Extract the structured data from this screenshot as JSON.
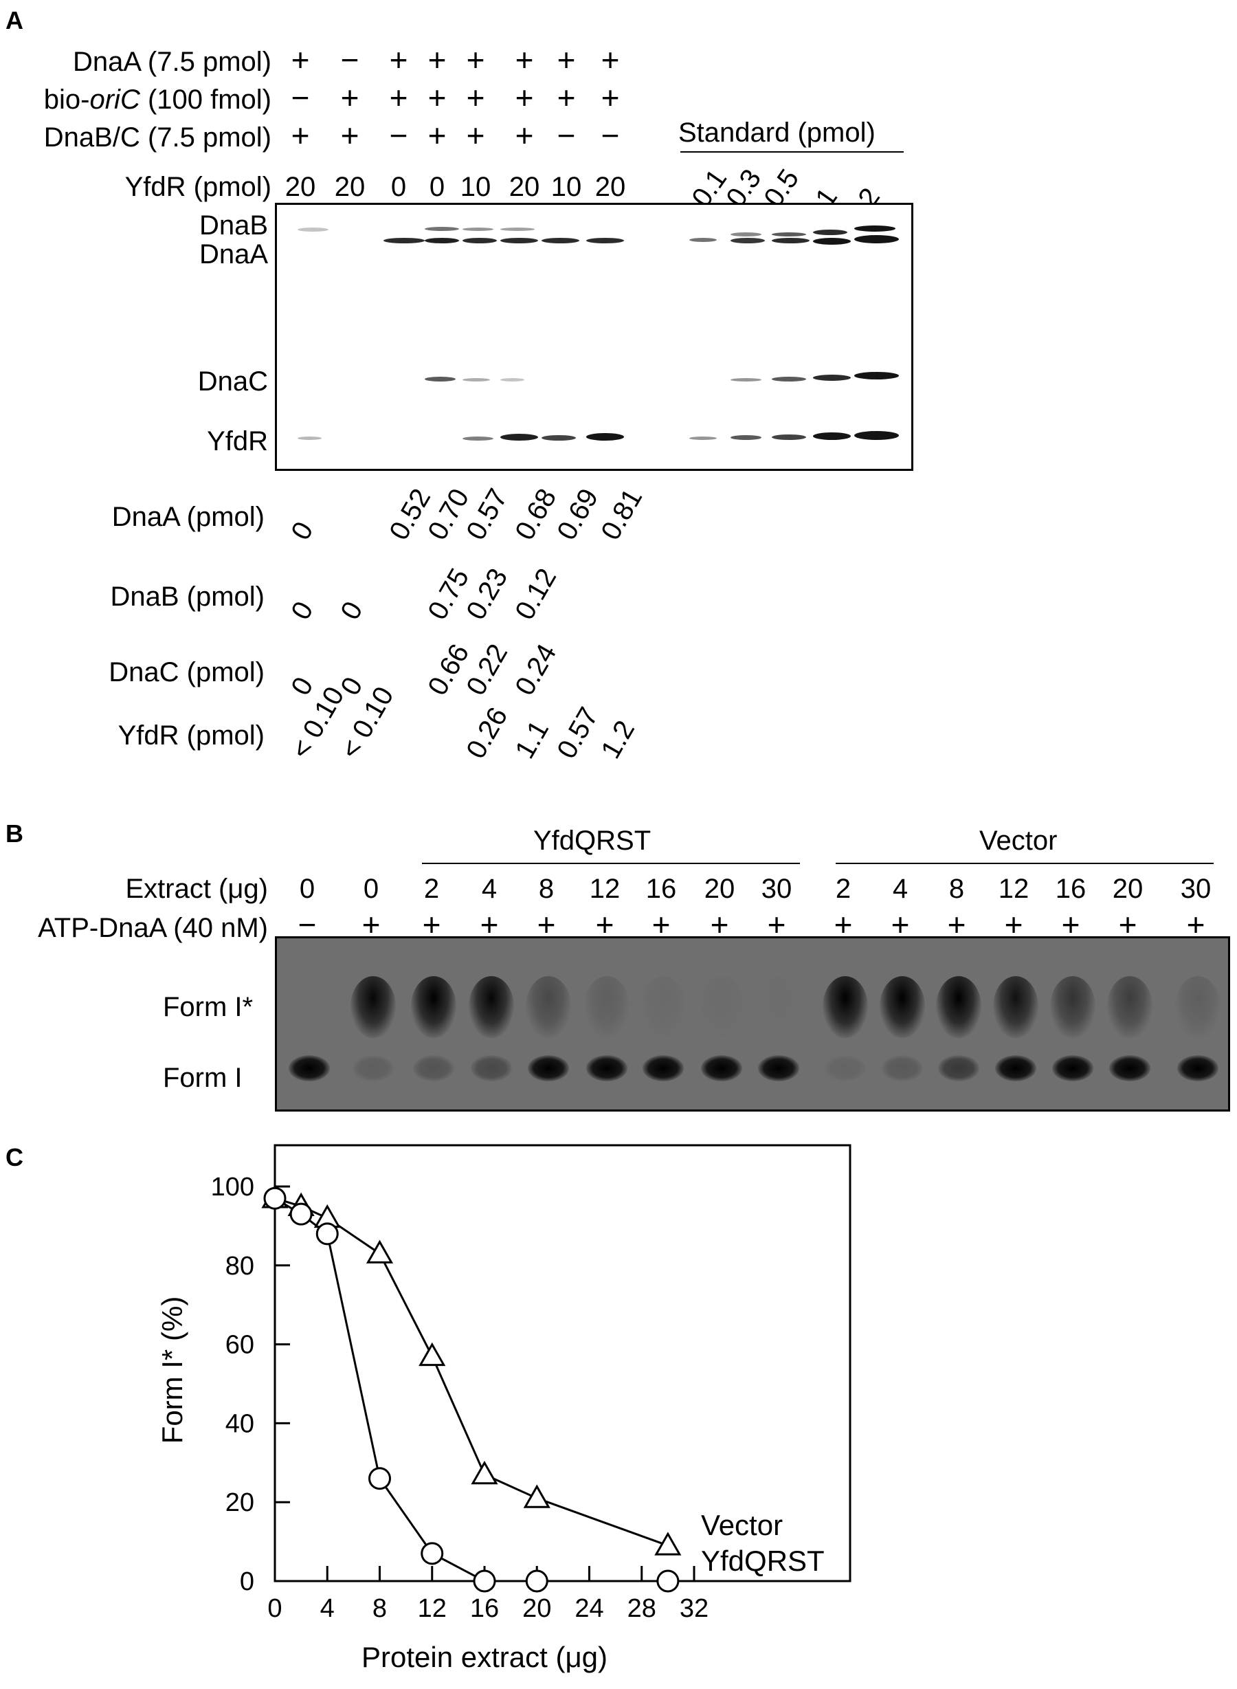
{
  "panelA": {
    "letter": "A",
    "rows": [
      {
        "label_pre": "DnaA (7.5 pmol)",
        "label_ital": "",
        "label_post": "",
        "signs": [
          "+",
          "−",
          "+",
          "+",
          "+",
          "+",
          "+",
          "+"
        ]
      },
      {
        "label_pre": "bio-",
        "label_ital": "oriC",
        "label_post": " (100 fmol)",
        "signs": [
          "−",
          "+",
          "+",
          "+",
          "+",
          "+",
          "+",
          "+"
        ]
      },
      {
        "label_pre": "DnaB/C (7.5 pmol)",
        "label_ital": "",
        "label_post": "",
        "signs": [
          "+",
          "+",
          "−",
          "+",
          "+",
          "+",
          "−",
          "−"
        ]
      }
    ],
    "yfdr_row_label": "YfdR (pmol)",
    "yfdr_values": [
      "20",
      "20",
      "0",
      "0",
      "10",
      "20",
      "10",
      "20"
    ],
    "standard_label": "Standard (pmol)",
    "standard_values": [
      "0.1",
      "0.3",
      "0.5",
      "1",
      "2"
    ],
    "band_labels": [
      "DnaB",
      "DnaA",
      "DnaC",
      "YfdR"
    ],
    "quant": [
      {
        "label": "DnaA (pmol)",
        "values": [
          "0",
          "",
          "0.52",
          "0.70",
          "0.57",
          "0.68",
          "0.69",
          "0.81"
        ]
      },
      {
        "label": "DnaB (pmol)",
        "values": [
          "0",
          "0",
          "",
          "0.75",
          "0.23",
          "0.12",
          "",
          ""
        ]
      },
      {
        "label": "DnaC (pmol)",
        "values": [
          "0",
          "0",
          "",
          "0.66",
          "0.22",
          "0.24",
          "",
          ""
        ]
      },
      {
        "label": "YfdR (pmol)",
        "values": [
          "< 0.10",
          "< 0.10",
          "",
          "",
          "0.26",
          "1.1",
          "0.57",
          "1.2"
        ]
      }
    ]
  },
  "panelB": {
    "letter": "B",
    "group1": "YfdQRST",
    "group2": "Vector",
    "extract_label_pre": "Extract (",
    "extract_label_unit": "μg",
    "extract_label_post": ")",
    "extract_values": [
      "0",
      "0",
      "2",
      "4",
      "8",
      "12",
      "16",
      "20",
      "30",
      "2",
      "4",
      "8",
      "12",
      "16",
      "20",
      "30"
    ],
    "atp_label": "ATP-DnaA (40 nM)",
    "atp_signs": [
      "−",
      "+",
      "+",
      "+",
      "+",
      "+",
      "+",
      "+",
      "+",
      "+",
      "+",
      "+",
      "+",
      "+",
      "+",
      "+"
    ],
    "form_labels": [
      "Form I*",
      "Form I"
    ],
    "formIstar_intensity": [
      0,
      0.95,
      1,
      0.95,
      0.35,
      0.15,
      0.05,
      0.03,
      0.02,
      1,
      1,
      1,
      0.85,
      0.55,
      0.45,
      0.15
    ],
    "formI_intensity": [
      1,
      0.15,
      0.25,
      0.35,
      1,
      1,
      1,
      1,
      1,
      0.1,
      0.2,
      0.5,
      1,
      1,
      1,
      1
    ]
  },
  "panelC": {
    "letter": "C",
    "chart_data": {
      "type": "line",
      "xlabel": "Protein extract (μg)",
      "ylabel": "Form I* (%)",
      "xlim": [
        0,
        32
      ],
      "ylim": [
        0,
        100
      ],
      "xticks": [
        0,
        4,
        8,
        12,
        16,
        20,
        24,
        28,
        32
      ],
      "yticks": [
        0,
        20,
        40,
        60,
        80,
        100
      ],
      "series": [
        {
          "name": "Vector",
          "marker": "triangle",
          "x": [
            0,
            2,
            4,
            8,
            12,
            16,
            20,
            30
          ],
          "y": [
            97,
            95,
            92,
            83,
            57,
            27,
            21,
            9
          ]
        },
        {
          "name": "YfdQRST",
          "marker": "circle",
          "x": [
            0,
            2,
            4,
            8,
            12,
            16,
            20,
            30
          ],
          "y": [
            97,
            93,
            88,
            26,
            7,
            0,
            0,
            0
          ]
        }
      ]
    }
  }
}
